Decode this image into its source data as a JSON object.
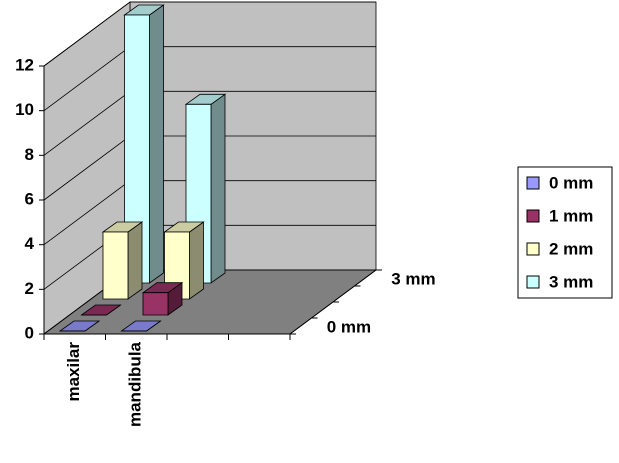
{
  "chart_data": {
    "type": "bar3d",
    "categories": [
      "maxilar",
      "mandibula",
      null,
      null
    ],
    "series": [
      {
        "name": "0 mm",
        "color": "#9999ff",
        "values": [
          0,
          0,
          null,
          null
        ]
      },
      {
        "name": "1 mm",
        "color": "#993366",
        "values": [
          0,
          1,
          null,
          null
        ]
      },
      {
        "name": "2 mm",
        "color": "#ffffcc",
        "values": [
          3,
          3,
          null,
          null
        ]
      },
      {
        "name": "3 mm",
        "color": "#ccffff",
        "values": [
          12,
          8,
          null,
          null
        ]
      }
    ],
    "ylim": [
      0,
      12
    ],
    "yticks": [
      0,
      2,
      4,
      6,
      8,
      10,
      12
    ],
    "grid": true,
    "depth_labels": [
      0,
      3
    ],
    "legend": "right"
  }
}
